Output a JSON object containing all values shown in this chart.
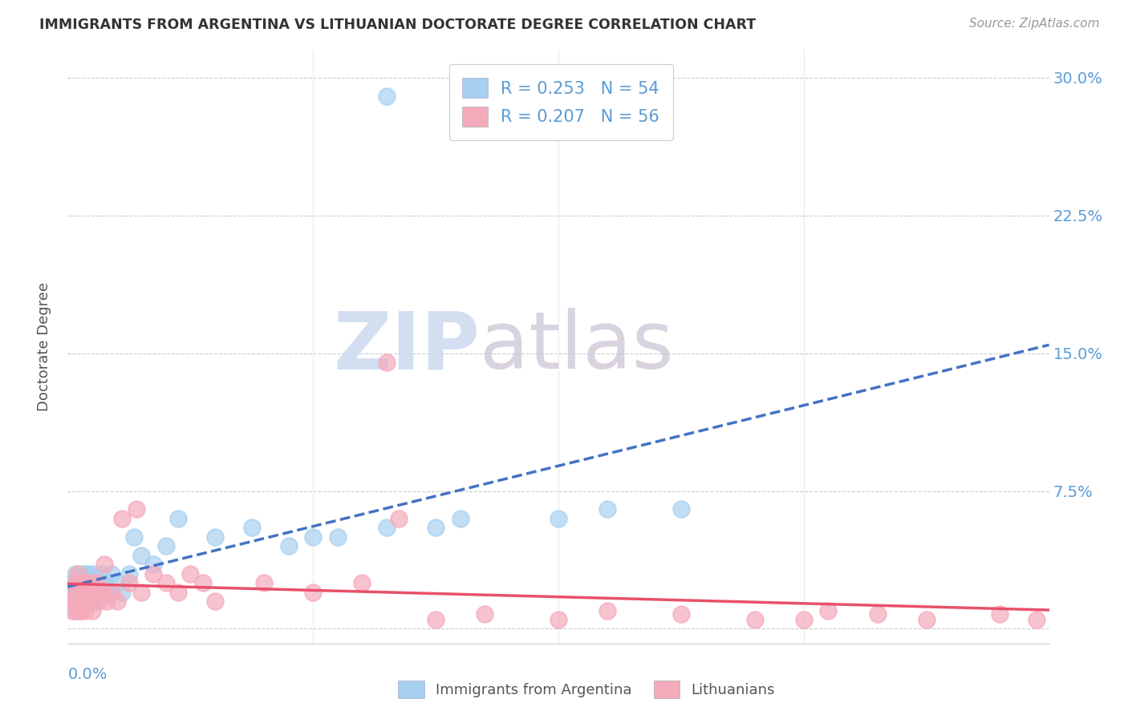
{
  "title": "IMMIGRANTS FROM ARGENTINA VS LITHUANIAN DOCTORATE DEGREE CORRELATION CHART",
  "source": "Source: ZipAtlas.com",
  "ylabel": "Doctorate Degree",
  "ytick_vals": [
    0.0,
    0.075,
    0.15,
    0.225,
    0.3
  ],
  "ytick_labels": [
    "",
    "7.5%",
    "15.0%",
    "22.5%",
    "30.0%"
  ],
  "xlim": [
    0.0,
    0.4
  ],
  "ylim": [
    -0.008,
    0.315
  ],
  "R_argentina": 0.253,
  "N_argentina": 54,
  "R_lithuanian": 0.207,
  "N_lithuanian": 56,
  "color_argentina": "#A8D0F0",
  "color_lithuanian": "#F5AABB",
  "line_color_argentina": "#4472C4",
  "line_color_lithuanian": "#E8506A",
  "background_color": "#FFFFFF",
  "legend_label_argentina": "Immigrants from Argentina",
  "legend_label_lithuanian": "Lithuanians",
  "argentina_scatter_x": [
    0.001,
    0.002,
    0.002,
    0.003,
    0.003,
    0.003,
    0.004,
    0.004,
    0.004,
    0.005,
    0.005,
    0.005,
    0.005,
    0.006,
    0.006,
    0.006,
    0.007,
    0.007,
    0.007,
    0.008,
    0.008,
    0.008,
    0.009,
    0.009,
    0.01,
    0.01,
    0.01,
    0.011,
    0.012,
    0.013,
    0.014,
    0.015,
    0.016,
    0.018,
    0.02,
    0.022,
    0.025,
    0.027,
    0.03,
    0.035,
    0.04,
    0.045,
    0.06,
    0.075,
    0.09,
    0.1,
    0.11,
    0.13,
    0.15,
    0.16,
    0.2,
    0.22,
    0.25,
    0.13
  ],
  "argentina_scatter_y": [
    0.02,
    0.025,
    0.015,
    0.03,
    0.02,
    0.01,
    0.025,
    0.015,
    0.02,
    0.03,
    0.02,
    0.015,
    0.01,
    0.025,
    0.02,
    0.015,
    0.025,
    0.03,
    0.02,
    0.03,
    0.025,
    0.015,
    0.02,
    0.025,
    0.03,
    0.02,
    0.015,
    0.025,
    0.025,
    0.02,
    0.03,
    0.025,
    0.02,
    0.03,
    0.025,
    0.02,
    0.03,
    0.05,
    0.04,
    0.035,
    0.045,
    0.06,
    0.05,
    0.055,
    0.045,
    0.05,
    0.05,
    0.055,
    0.055,
    0.06,
    0.06,
    0.065,
    0.065,
    0.29
  ],
  "lithuanian_scatter_x": [
    0.001,
    0.002,
    0.002,
    0.003,
    0.003,
    0.004,
    0.004,
    0.005,
    0.005,
    0.005,
    0.006,
    0.006,
    0.007,
    0.007,
    0.007,
    0.008,
    0.008,
    0.009,
    0.009,
    0.01,
    0.01,
    0.011,
    0.012,
    0.013,
    0.014,
    0.015,
    0.016,
    0.018,
    0.02,
    0.022,
    0.025,
    0.028,
    0.03,
    0.035,
    0.04,
    0.045,
    0.05,
    0.055,
    0.06,
    0.08,
    0.1,
    0.12,
    0.15,
    0.17,
    0.2,
    0.22,
    0.25,
    0.28,
    0.3,
    0.31,
    0.33,
    0.35,
    0.38,
    0.395,
    0.13,
    0.135
  ],
  "lithuanian_scatter_y": [
    0.015,
    0.02,
    0.01,
    0.025,
    0.015,
    0.03,
    0.01,
    0.025,
    0.015,
    0.01,
    0.02,
    0.015,
    0.02,
    0.025,
    0.01,
    0.015,
    0.025,
    0.02,
    0.015,
    0.025,
    0.01,
    0.02,
    0.025,
    0.015,
    0.02,
    0.035,
    0.015,
    0.02,
    0.015,
    0.06,
    0.025,
    0.065,
    0.02,
    0.03,
    0.025,
    0.02,
    0.03,
    0.025,
    0.015,
    0.025,
    0.02,
    0.025,
    0.005,
    0.008,
    0.005,
    0.01,
    0.008,
    0.005,
    0.005,
    0.01,
    0.008,
    0.005,
    0.008,
    0.005,
    0.145,
    0.06
  ],
  "watermark_zip_color": "#C8D8EE",
  "watermark_atlas_color": "#D0C8D8",
  "tick_color": "#5B9BD5",
  "ylabel_color": "#555555",
  "title_color": "#333333",
  "source_color": "#999999"
}
